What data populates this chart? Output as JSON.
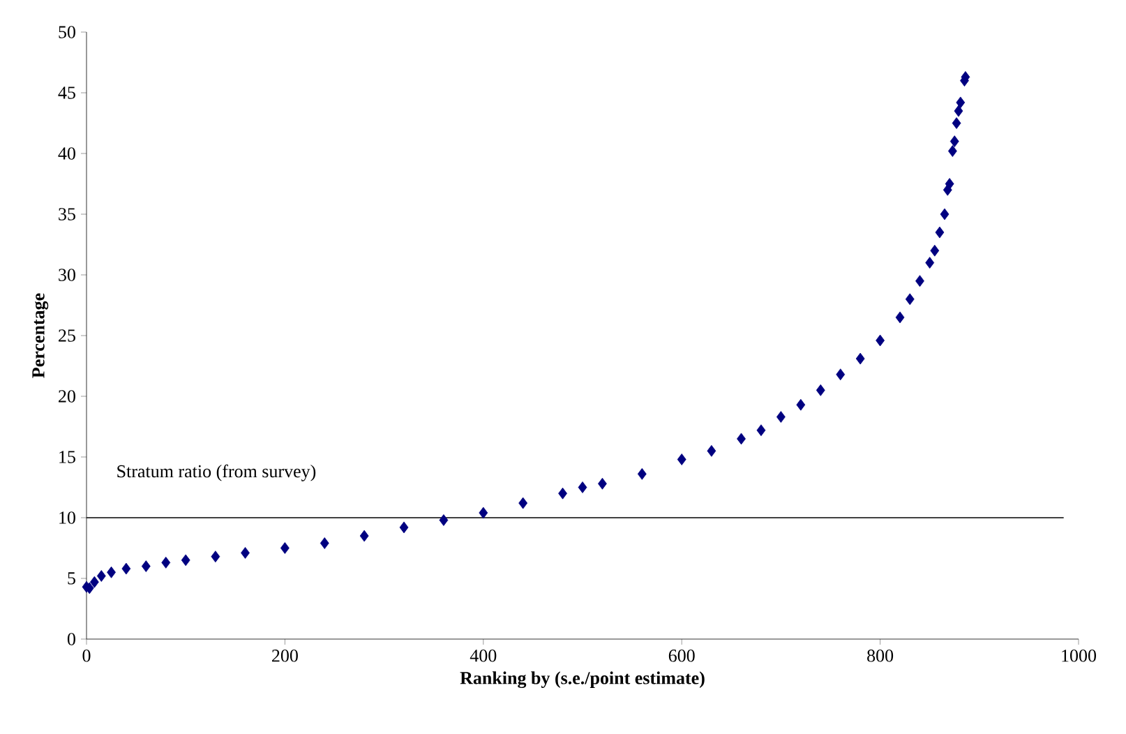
{
  "chart_data": {
    "type": "scatter",
    "xlabel": "Ranking by (s.e./point estimate)",
    "ylabel": "Percentage",
    "xlim": [
      0,
      1000
    ],
    "xticks": [
      0,
      200,
      400,
      600,
      800,
      1000
    ],
    "ylim": [
      0,
      50
    ],
    "yticks": [
      0,
      5,
      10,
      15,
      20,
      25,
      30,
      35,
      40,
      45,
      50
    ],
    "marker": "diamond",
    "grid": false,
    "ref_lines": [
      {
        "axis": "y",
        "value": 10,
        "label": "Stratum ratio (from survey)",
        "color": "#000000"
      }
    ],
    "series": [
      {
        "color": "#000080",
        "x": [
          0,
          3,
          8,
          15,
          25,
          40,
          60,
          80,
          100,
          130,
          160,
          200,
          240,
          280,
          320,
          360,
          400,
          440,
          480,
          500,
          520,
          560,
          600,
          630,
          660,
          680,
          700,
          720,
          740,
          760,
          780,
          800,
          820,
          830,
          840,
          850,
          855,
          860,
          865,
          868,
          870,
          873,
          875,
          877,
          879,
          881,
          885,
          886
        ],
        "values": [
          4.3,
          4.2,
          4.7,
          5.2,
          5.5,
          5.8,
          6.0,
          6.3,
          6.5,
          6.8,
          7.1,
          7.5,
          7.9,
          8.5,
          9.2,
          9.8,
          10.4,
          11.2,
          12.0,
          12.5,
          12.8,
          13.6,
          14.8,
          15.5,
          16.5,
          17.2,
          18.3,
          19.3,
          20.5,
          21.8,
          23.1,
          24.6,
          26.5,
          28.0,
          29.5,
          31.0,
          32.0,
          33.5,
          35.0,
          37.0,
          37.5,
          40.2,
          41.0,
          42.5,
          43.5,
          44.2,
          46.0,
          46.3
        ]
      }
    ]
  }
}
